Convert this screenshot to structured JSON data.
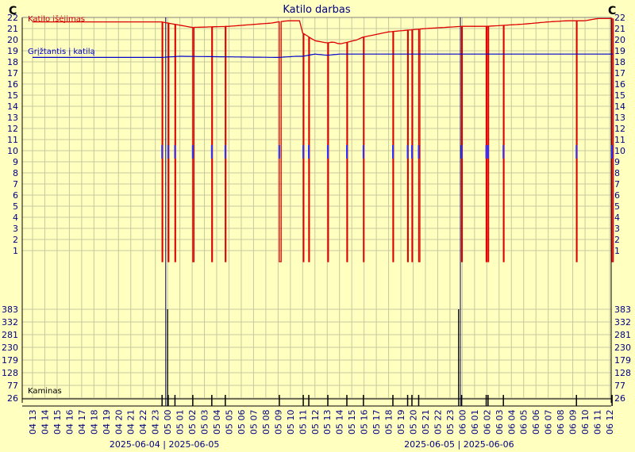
{
  "chart_data": {
    "type": "line",
    "title": "Katilo darbas",
    "unit_left": "C",
    "unit_right": "C",
    "top_panel": {
      "yticks": [
        1,
        2,
        3,
        4,
        5,
        6,
        7,
        8,
        9,
        10,
        11,
        12,
        13,
        14,
        15,
        16,
        17,
        18,
        19,
        20,
        21,
        22
      ],
      "ylim": [
        0,
        22
      ],
      "series": [
        {
          "name": "Katilo išėjimas",
          "color": "#dd0000",
          "x": [
            0,
            10.5,
            11.0,
            12.0,
            13.0,
            16.0,
            19.5,
            20.0,
            20.8,
            21.8,
            22.0,
            23.0,
            24.0,
            24.5,
            25.0,
            26.5,
            26.8,
            29.0,
            32.0,
            35.0,
            37.0,
            38.5,
            40.0,
            41.0,
            42.0,
            43.5,
            45.0,
            46.0,
            47.0,
            48.5,
            49.5
          ],
          "y": [
            21.6,
            21.6,
            21.5,
            21.3,
            21.1,
            21.2,
            21.5,
            21.6,
            21.7,
            21.7,
            20.6,
            19.9,
            19.7,
            19.8,
            19.6,
            20.0,
            20.2,
            20.7,
            21.0,
            21.2,
            21.2,
            21.3,
            21.4,
            21.5,
            21.6,
            21.7,
            21.7,
            21.9,
            21.9,
            21.9,
            22.0
          ]
        },
        {
          "name": "Grįžtantis į katilą",
          "color": "#0000cc",
          "x": [
            0,
            10.5,
            12.0,
            20.0,
            21.5,
            22.0,
            23.0,
            24.0,
            25.0,
            30.0,
            40.0,
            49.5
          ],
          "y": [
            18.4,
            18.4,
            18.5,
            18.4,
            18.5,
            18.5,
            18.7,
            18.6,
            18.7,
            18.7,
            18.7,
            18.7
          ]
        }
      ],
      "off_periods": [
        {
          "start": 10.55,
          "end": 10.6
        },
        {
          "start": 11.05,
          "end": 11.1
        },
        {
          "start": 11.6,
          "end": 11.65
        },
        {
          "start": 13.05,
          "end": 13.15
        },
        {
          "start": 14.6,
          "end": 14.65
        },
        {
          "start": 15.7,
          "end": 15.75
        },
        {
          "start": 20.1,
          "end": 20.25
        },
        {
          "start": 22.05,
          "end": 22.1
        },
        {
          "start": 22.5,
          "end": 22.55
        },
        {
          "start": 24.05,
          "end": 24.1
        },
        {
          "start": 25.6,
          "end": 25.65
        },
        {
          "start": 26.95,
          "end": 27.0
        },
        {
          "start": 29.35,
          "end": 29.4
        },
        {
          "start": 30.55,
          "end": 30.6
        },
        {
          "start": 30.9,
          "end": 30.95
        },
        {
          "start": 31.45,
          "end": 31.55
        },
        {
          "start": 34.95,
          "end": 35.0
        },
        {
          "start": 36.95,
          "end": 37.0
        },
        {
          "start": 37.1,
          "end": 37.15
        },
        {
          "start": 38.35,
          "end": 38.4
        },
        {
          "start": 44.3,
          "end": 44.35
        },
        {
          "start": 47.2,
          "end": 47.3
        }
      ]
    },
    "bottom_panel": {
      "name": "Kaminas",
      "yticks": [
        26,
        77,
        128,
        179,
        230,
        281,
        332,
        383
      ],
      "ylim": [
        26,
        383
      ],
      "spikes": [
        {
          "x": 11.0,
          "value": 383
        },
        {
          "x": 34.7,
          "value": 383
        }
      ]
    },
    "x_tick_labels": [
      "04 13",
      "04 14",
      "04 15",
      "04 16",
      "04 17",
      "04 18",
      "04 19",
      "04 20",
      "04 21",
      "04 22",
      "04 23",
      "05 00",
      "05 01",
      "05 02",
      "05 03",
      "05 04",
      "05 05",
      "05 06",
      "05 07",
      "05 08",
      "05 09",
      "05 10",
      "05 11",
      "05 12",
      "05 13",
      "05 14",
      "05 15",
      "05 16",
      "05 17",
      "05 18",
      "05 19",
      "05 20",
      "05 21",
      "05 22",
      "05 23",
      "06 00",
      "06 01",
      "06 02",
      "06 03",
      "06 04",
      "06 05",
      "06 06",
      "06 07",
      "06 08",
      "06 09",
      "06 10",
      "06 11",
      "06 12"
    ],
    "midnight_markers": [
      11,
      35
    ],
    "date_labels": [
      {
        "text": "2025-06-04  |  2025-06-05",
        "at": 11
      },
      {
        "text": "2025-06-05  |  2025-06-06",
        "at": 35
      }
    ],
    "grid": true
  }
}
